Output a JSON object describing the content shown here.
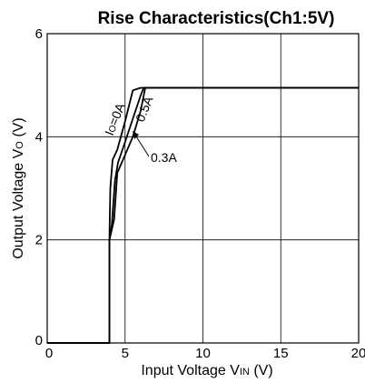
{
  "chart_data": {
    "type": "line",
    "title": "Rise Characteristics(Ch1:5V)",
    "xlabel": "Input Voltage VIN (V)",
    "xlabel_main": "Input Voltage V",
    "xlabel_sub": "IN",
    "xlabel_unit": " (V)",
    "ylabel": "Output Voltage VO (V)",
    "ylabel_main": "Output Voltage V",
    "ylabel_sub": "O",
    "ylabel_unit": " (V)",
    "xlim": [
      0,
      20
    ],
    "ylim": [
      0,
      6
    ],
    "xticks": [
      0,
      5,
      10,
      15,
      20
    ],
    "yticks": [
      0,
      2,
      4,
      6
    ],
    "grid": true,
    "series": [
      {
        "name": "IO=0A",
        "x": [
          0,
          4.0,
          4.0,
          4.05,
          4.2,
          4.5,
          5.0,
          5.5,
          6.0,
          20
        ],
        "y": [
          0,
          0,
          2.1,
          3.0,
          3.55,
          3.75,
          4.3,
          4.9,
          4.95,
          4.95
        ]
      },
      {
        "name": "0.3A",
        "x": [
          0,
          4.0,
          4.0,
          4.15,
          4.35,
          4.55,
          5.0,
          5.5,
          6.0,
          6.2,
          20
        ],
        "y": [
          0,
          0,
          2.0,
          2.3,
          3.15,
          3.5,
          3.9,
          4.35,
          4.8,
          4.95,
          4.95
        ]
      },
      {
        "name": "0.5A",
        "x": [
          0,
          4.0,
          4.0,
          4.3,
          4.5,
          5.0,
          5.5,
          6.0,
          6.3,
          20
        ],
        "y": [
          0,
          0,
          2.0,
          2.4,
          3.3,
          3.65,
          4.0,
          4.5,
          4.95,
          4.95
        ]
      }
    ],
    "annotations": [
      {
        "main": "I",
        "sub": "O",
        "rest": "=0A"
      },
      {
        "main": "0.5A",
        "sub": "",
        "rest": ""
      },
      {
        "main": "0.3A",
        "sub": "",
        "rest": ""
      }
    ]
  }
}
